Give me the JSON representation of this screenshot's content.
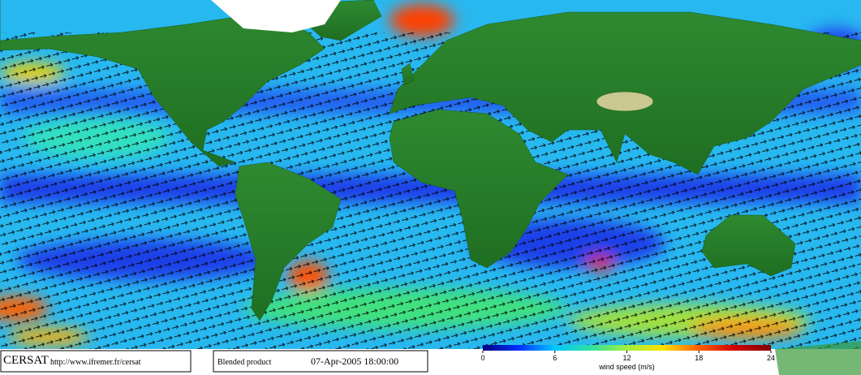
{
  "header": {
    "logo": "CERSAT",
    "url": "http://www.ifremer.fr/cersat"
  },
  "info": {
    "product": "Blended product",
    "timestamp": "07-Apr-2005 18:00:00"
  },
  "colorbar": {
    "label": "wind speed (m/s)",
    "ticks": [
      0,
      6,
      12,
      18,
      24
    ],
    "colors": [
      "#000080",
      "#0030ff",
      "#00c8ff",
      "#30e0a0",
      "#a0f040",
      "#ffe000",
      "#ff6000",
      "#d00000",
      "#800000"
    ]
  }
}
